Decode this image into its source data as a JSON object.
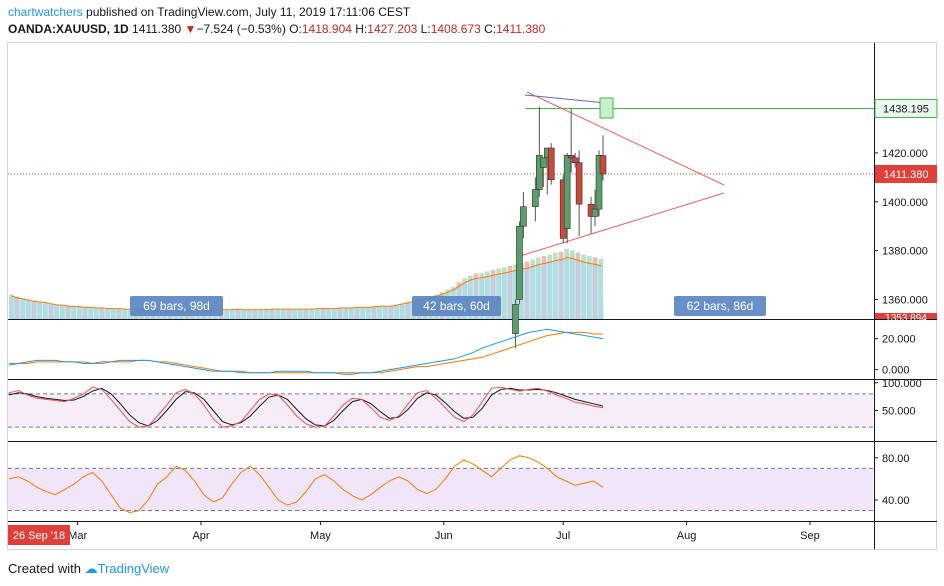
{
  "header": {
    "author": "chartwatchers",
    "published_text": " published on TradingView.com, July 11, 2019 17:11:06 CEST",
    "symbol": "OANDA:XAUUSD, 1D",
    "last": "1411.380",
    "change": "−7.524 (−0.53%)",
    "open_label": "O:",
    "open": "1418.904",
    "high_label": "H:",
    "high": "1427.203",
    "low_label": "L:",
    "low": "1408.673",
    "close_label": "C:",
    "close": "1411.380"
  },
  "footer": {
    "created_with": "Created with",
    "brand": "TradingView"
  },
  "colors": {
    "up": "#5b9e6c",
    "down": "#c84a3b",
    "ma": "#a6d8f5",
    "macd": "#2196f3",
    "signal": "#f57c00",
    "stoch_k": "#ef5350",
    "stoch_d": "#131722",
    "rsi": "#f57c00",
    "trend": "#f06262",
    "blue_trend": "#5c6bc0",
    "level": "#4caf50"
  },
  "chart_data": {
    "type": "candlestick",
    "symbol": "OANDA:XAUUSD",
    "interval": "1D",
    "price_axis": {
      "range": [
        1352,
        1465
      ],
      "ticks": [
        1360,
        1380,
        1400,
        1420
      ],
      "tick_labels": [
        "1360.000",
        "1380.000",
        "1400.000",
        "1420.000"
      ]
    },
    "time_axis": {
      "start_label": "26 Sep '18",
      "month_labels": [
        "Mar",
        "Apr",
        "May",
        "Jun",
        "Jul",
        "Aug",
        "Sep"
      ],
      "first_bar_date": "2019-02-12",
      "last_bar_date": "2019-07-11",
      "right_edge_date": "2019-10-07"
    },
    "price_labels": [
      {
        "text": "1438.195",
        "value": 1438.195,
        "kind": "horizontal-line"
      },
      {
        "text": "1411.380",
        "value": 1411.38,
        "kind": "last-price"
      },
      {
        "text": "1353.894",
        "value": 1353.894,
        "kind": "partially-hidden"
      }
    ],
    "range_labels": [
      "69 bars, 98d",
      "42 bars, 60d",
      "62 bars, 86d"
    ],
    "candles": [
      {
        "date": "2019-06-19",
        "o": 1346.0,
        "h": 1360.0,
        "l": 1340.0,
        "c": 1358.0
      },
      {
        "date": "2019-06-20",
        "o": 1360.0,
        "h": 1392.0,
        "l": 1358.0,
        "c": 1390.0
      },
      {
        "date": "2019-06-21",
        "o": 1390.0,
        "h": 1404.0,
        "l": 1385.0,
        "c": 1398.0
      },
      {
        "date": "2019-06-24",
        "o": 1398.0,
        "h": 1410.0,
        "l": 1392.0,
        "c": 1405.0
      },
      {
        "date": "2019-06-25",
        "o": 1405.0,
        "h": 1439.0,
        "l": 1402.0,
        "c": 1419.0
      },
      {
        "date": "2019-06-26",
        "o": 1414.0,
        "h": 1418.0,
        "l": 1406.0,
        "c": 1418.0
      },
      {
        "date": "2019-06-27",
        "o": 1418.0,
        "h": 1422.0,
        "l": 1403.0,
        "c": 1422.0
      },
      {
        "date": "2019-06-28",
        "o": 1422.0,
        "h": 1424.0,
        "l": 1407.0,
        "c": 1409.0
      },
      {
        "date": "2019-07-01",
        "o": 1409.0,
        "h": 1411.0,
        "l": 1383.0,
        "c": 1385.0
      },
      {
        "date": "2019-07-02",
        "o": 1389.0,
        "h": 1420.0,
        "l": 1383.0,
        "c": 1419.0
      },
      {
        "date": "2019-07-03",
        "o": 1419.0,
        "h": 1438.0,
        "l": 1412.0,
        "c": 1418.0
      },
      {
        "date": "2019-07-04",
        "o": 1418.0,
        "h": 1420.0,
        "l": 1414.0,
        "c": 1416.0
      },
      {
        "date": "2019-07-05",
        "o": 1416.0,
        "h": 1421.0,
        "l": 1386.0,
        "c": 1399.0
      },
      {
        "date": "2019-07-08",
        "o": 1399.0,
        "h": 1402.0,
        "l": 1387.0,
        "c": 1394.0
      },
      {
        "date": "2019-07-09",
        "o": 1394.0,
        "h": 1405.0,
        "l": 1390.0,
        "c": 1397.0
      },
      {
        "date": "2019-07-10",
        "o": 1397.0,
        "h": 1421.0,
        "l": 1394.0,
        "c": 1419.0
      },
      {
        "date": "2019-07-11",
        "o": 1418.904,
        "h": 1427.203,
        "l": 1408.673,
        "c": 1411.38
      }
    ],
    "volume": {
      "comment_scale": "relative 0-1",
      "values": [
        0.35,
        0.32,
        0.3,
        0.28,
        0.26,
        0.25,
        0.24,
        0.22,
        0.2,
        0.2,
        0.18,
        0.18,
        0.17,
        0.16,
        0.16,
        0.15,
        0.15,
        0.14,
        0.14,
        0.14,
        0.13,
        0.13,
        0.13,
        0.12,
        0.12,
        0.12,
        0.12,
        0.11,
        0.11,
        0.11,
        0.12,
        0.12,
        0.12,
        0.11,
        0.11,
        0.11,
        0.11,
        0.12,
        0.12,
        0.12,
        0.13,
        0.12,
        0.12,
        0.12,
        0.12,
        0.12,
        0.13,
        0.13,
        0.13,
        0.13,
        0.13,
        0.13,
        0.13,
        0.13,
        0.14,
        0.14,
        0.14,
        0.14,
        0.15,
        0.15,
        0.15,
        0.16,
        0.16,
        0.16,
        0.17,
        0.18,
        0.18,
        0.18,
        0.2,
        0.22,
        0.24,
        0.26,
        0.28,
        0.3,
        0.32,
        0.35,
        0.38,
        0.42,
        0.46,
        0.52,
        0.58,
        0.62,
        0.65,
        0.66,
        0.68,
        0.7,
        0.72,
        0.74,
        0.76,
        0.78,
        0.8,
        0.82,
        0.85,
        0.88,
        0.9,
        0.92,
        0.95,
        0.96,
        1.0,
        0.98,
        0.95,
        0.92,
        0.9,
        0.88,
        0.86
      ]
    },
    "macd_pane": {
      "ticks": [
        0,
        20
      ],
      "tick_labels": [
        "0.000",
        "20.000"
      ],
      "range": [
        -6,
        32
      ],
      "macd": [
        3,
        4,
        5,
        6,
        6,
        6,
        5,
        5,
        4,
        4,
        5,
        5,
        6,
        6,
        6,
        6,
        5,
        4,
        3,
        2,
        1,
        0,
        -1,
        -1,
        -1,
        -2,
        -2,
        -2,
        -2,
        -1,
        -1,
        -1,
        -1,
        -2,
        -2,
        -2,
        -3,
        -3,
        -2,
        -2,
        -1,
        0,
        1,
        2,
        3,
        4,
        5,
        6,
        7,
        9,
        11,
        14,
        16,
        18,
        20,
        22,
        24,
        25,
        26,
        25,
        24,
        23,
        22,
        21,
        20
      ],
      "signal": [
        4,
        4,
        4,
        5,
        5,
        5,
        5,
        5,
        5,
        4,
        4,
        5,
        5,
        5,
        6,
        6,
        5,
        5,
        4,
        3,
        2,
        1,
        0,
        -1,
        -1,
        -1,
        -2,
        -2,
        -2,
        -2,
        -2,
        -2,
        -2,
        -2,
        -2,
        -2,
        -2,
        -2,
        -2,
        -2,
        -2,
        -1,
        0,
        1,
        2,
        2,
        3,
        4,
        5,
        6,
        7,
        8,
        10,
        12,
        14,
        16,
        18,
        20,
        22,
        23,
        24,
        24,
        24,
        23,
        23
      ]
    },
    "stoch_pane": {
      "ticks": [
        50,
        100
      ],
      "tick_labels": [
        "50.000",
        "100.000"
      ],
      "range": [
        -5,
        105
      ],
      "bands": [
        20,
        80
      ],
      "k": [
        82,
        86,
        78,
        72,
        70,
        68,
        66,
        72,
        80,
        92,
        88,
        70,
        50,
        30,
        20,
        22,
        40,
        60,
        82,
        88,
        80,
        60,
        35,
        20,
        22,
        30,
        50,
        70,
        80,
        78,
        60,
        40,
        26,
        20,
        22,
        40,
        60,
        72,
        70,
        55,
        38,
        32,
        40,
        62,
        82,
        86,
        72,
        55,
        38,
        30,
        42,
        66,
        90,
        92,
        88,
        85,
        88,
        90,
        85,
        78,
        72,
        65,
        62,
        58,
        55
      ],
      "d": [
        78,
        82,
        80,
        75,
        72,
        70,
        68,
        69,
        75,
        85,
        90,
        80,
        62,
        42,
        28,
        22,
        32,
        50,
        70,
        84,
        82,
        70,
        50,
        30,
        24,
        28,
        40,
        58,
        74,
        78,
        70,
        52,
        35,
        24,
        22,
        32,
        50,
        66,
        70,
        62,
        48,
        36,
        38,
        52,
        72,
        82,
        78,
        64,
        48,
        36,
        38,
        54,
        78,
        88,
        90,
        87,
        87,
        88,
        86,
        82,
        76,
        70,
        66,
        62,
        58
      ]
    },
    "rsi_pane": {
      "ticks": [
        40,
        80
      ],
      "tick_labels": [
        "40.00",
        "80.00"
      ],
      "range": [
        20,
        95
      ],
      "bands": [
        30,
        70
      ],
      "values": [
        60,
        62,
        58,
        52,
        48,
        45,
        50,
        55,
        62,
        66,
        58,
        45,
        32,
        28,
        30,
        40,
        55,
        62,
        72,
        68,
        58,
        45,
        38,
        42,
        55,
        66,
        72,
        64,
        52,
        40,
        35,
        38,
        48,
        60,
        64,
        58,
        50,
        44,
        40,
        45,
        52,
        58,
        62,
        58,
        50,
        46,
        50,
        60,
        72,
        78,
        74,
        68,
        62,
        70,
        78,
        82,
        80,
        76,
        70,
        62,
        58,
        54,
        56,
        58,
        52
      ]
    }
  }
}
